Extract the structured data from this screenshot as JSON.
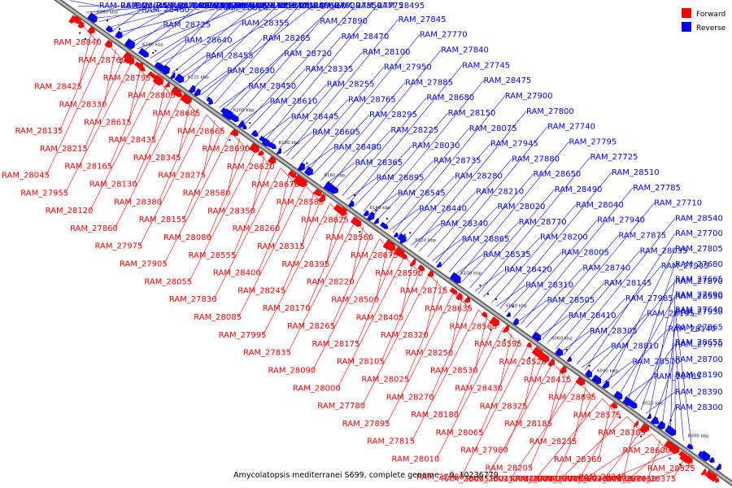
{
  "caption": "Amycolatopsis mediterranei S699, complete genome. - 0..10236779",
  "legend": [
    {
      "label": "Forward",
      "color": "#ff0000"
    },
    {
      "label": "Reverse",
      "color": "#0000ff"
    }
  ],
  "colors": {
    "forward": "#ff0000",
    "reverse": "#0000ff",
    "axis": "#808080"
  },
  "axis_ticks": [
    "6260 kbp",
    "6240 kbp",
    "6220 kbp",
    "6200 kbp",
    "6180 kbp",
    "6160 kbp",
    "6140 kbp",
    "6120 kbp",
    "6100 kbp",
    "6080 kbp",
    "6060 kbp",
    "6040 kbp",
    "6020 kbp",
    "6000 kbp"
  ],
  "forward_labels": [
    "RAM_28840",
    "RAM_28760",
    "RAM_28795",
    "RAM_28805",
    "RAM_28685",
    "RAM_28665",
    "RAM_28690",
    "RAM_28620",
    "RAM_28670",
    "RAM_28585",
    "RAM_28625",
    "RAM_28560",
    "RAM_28675",
    "RAM_28590",
    "RAM_28715",
    "RAM_28635",
    "RAM_28565",
    "RAM_28595",
    "RAM_28520",
    "RAM_28415",
    "RAM_28695",
    "RAM_28575",
    "RAM_28385",
    "RAM_28600",
    "RAM_28525",
    "RAM_28425",
    "RAM_28330",
    "RAM_28615",
    "RAM_28435",
    "RAM_28345",
    "RAM_28275",
    "RAM_28580",
    "RAM_28350",
    "RAM_28260",
    "RAM_28315",
    "RAM_28395",
    "RAM_28220",
    "RAM_28500",
    "RAM_28405",
    "RAM_28320",
    "RAM_28250",
    "RAM_28530",
    "RAM_28430",
    "RAM_28325",
    "RAM_28185",
    "RAM_28235",
    "RAM_28360",
    "RAM_28240",
    "RAM_28160",
    "RAM_28375",
    "RAM_28135",
    "RAM_28215",
    "RAM_28165",
    "RAM_28130",
    "RAM_28380",
    "RAM_28155",
    "RAM_28080",
    "RAM_28555",
    "RAM_28400",
    "RAM_28245",
    "RAM_28170",
    "RAM_28265",
    "RAM_28175",
    "RAM_28105",
    "RAM_28025",
    "RAM_28270",
    "RAM_28180",
    "RAM_28065",
    "RAM_27980",
    "RAM_28205",
    "RAM_28050",
    "RAM_27915",
    "RAM_28070",
    "RAM_27990",
    "RAM_27910",
    "RAM_28045",
    "RAM_27955",
    "RAM_28120",
    "RAM_27860",
    "RAM_27975",
    "RAM_27905",
    "RAM_28055",
    "RAM_27830",
    "RAM_28085",
    "RAM_27995",
    "RAM_27835",
    "RAM_28090",
    "RAM_28000",
    "RAM_27780",
    "RAM_27895",
    "RAM_27815",
    "RAM_28010",
    "RAM_27760",
    "RAM_28095",
    "RAM_28015",
    "RAM_27810",
    "RAM_27730",
    "RAM_27765",
    "RAM_27735"
  ],
  "reverse_labels": [
    "RAM_28730",
    "RAM_28645",
    "RAM_28460",
    "RAM_28725",
    "RAM_28640",
    "RAM_28455",
    "RAM_28630",
    "RAM_28450",
    "RAM_28610",
    "RAM_28445",
    "RAM_28605",
    "RAM_28480",
    "RAM_28365",
    "RAM_28895",
    "RAM_28545",
    "RAM_28440",
    "RAM_28340",
    "RAM_28865",
    "RAM_28535",
    "RAM_28420",
    "RAM_28310",
    "RAM_28505",
    "RAM_28410",
    "RAM_28305",
    "RAM_28810",
    "RAM_28570",
    "RAM_28485",
    "RAM_28390",
    "RAM_28300",
    "RAM_28845",
    "RAM_28790",
    "RAM_28370",
    "RAM_28290",
    "RAM_28820",
    "RAM_28355",
    "RAM_28285",
    "RAM_28720",
    "RAM_28335",
    "RAM_28255",
    "RAM_28765",
    "RAM_28295",
    "RAM_28225",
    "RAM_28030",
    "RAM_28735",
    "RAM_28280",
    "RAM_28210",
    "RAM_28020",
    "RAM_28770",
    "RAM_28200",
    "RAM_28005",
    "RAM_28740",
    "RAM_28145",
    "RAM_27985",
    "RAM_28195",
    "RAM_28140",
    "RAM_27970",
    "RAM_28700",
    "RAM_28190",
    "RAM_28125",
    "RAM_27965",
    "RAM_28745",
    "RAM_28515",
    "RAM_28230",
    "RAM_28110",
    "RAM_27960",
    "RAM_27890",
    "RAM_28470",
    "RAM_28100",
    "RAM_27950",
    "RAM_27885",
    "RAM_28680",
    "RAM_28150",
    "RAM_28075",
    "RAM_27945",
    "RAM_27880",
    "RAM_28650",
    "RAM_28490",
    "RAM_28040",
    "RAM_27940",
    "RAM_27875",
    "RAM_28035",
    "RAM_27935",
    "RAM_27870",
    "RAM_28550",
    "RAM_27930",
    "RAM_27865",
    "RAM_28655",
    "RAM_28465",
    "RAM_27925",
    "RAM_27855",
    "RAM_27790",
    "RAM_28660",
    "RAM_27920",
    "RAM_27850",
    "RAM_27775",
    "RAM_28495",
    "RAM_27845",
    "RAM_27770",
    "RAM_27840",
    "RAM_27745",
    "RAM_28475",
    "RAM_27900",
    "RAM_27800",
    "RAM_27740",
    "RAM_27795",
    "RAM_27725",
    "RAM_28510",
    "RAM_27785",
    "RAM_27710",
    "RAM_28540",
    "RAM_27700",
    "RAM_27805",
    "RAM_27680",
    "RAM_27665",
    "RAM_27690",
    "RAM_27640"
  ]
}
